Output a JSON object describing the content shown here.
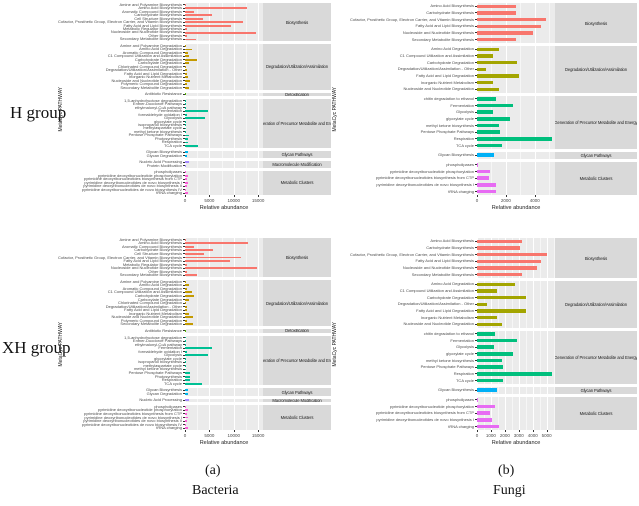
{
  "figure": {
    "row_groups": [
      {
        "label": "H group"
      },
      {
        "label": "XH group"
      }
    ],
    "captions": {
      "a_mark": "(a)",
      "a_label": "Bacteria",
      "b_mark": "(b)",
      "b_label": "Fungi"
    },
    "y_axis_title": "MetaCyc PATHWAY",
    "x_axis_title": "Relative abundance",
    "plot_bg": "#EBEBEB",
    "strip_bg": "#D9D9D9"
  },
  "chart_data": [
    {
      "id": "bacteria-h",
      "type": "bar",
      "row_group": "H group",
      "column": "Bacteria",
      "xlabel": "Relative abundance",
      "ylabel": "MetaCyc PATHWAY",
      "xlim": [
        0,
        16000
      ],
      "xticks": [
        0,
        5000,
        10000,
        15000
      ],
      "sections": [
        {
          "name": "Biosynthesis",
          "color": "#F8766D",
          "categories": [
            "Amine and Polyamine Biosynthesis",
            "Amino Acid Biosynthesis",
            "Aromatic Compound Biosynthesis",
            "Carbohydrate Biosynthesis",
            "Cell Structure Biosynthesis",
            "Cofactor, Prosthetic Group, Electron Carrier, and Vitamin Biosynthesis",
            "Fatty Acid and Lipid Biosynthesis",
            "Metabolic Regulator Biosynthesis",
            "Nucleoside and Nucleotide Biosynthesis",
            "Other Biosynthesis",
            "Secondary Metabolite Biosynthesis"
          ],
          "values": [
            300,
            12800,
            1800,
            5600,
            3600,
            11800,
            9400,
            400,
            14600,
            500,
            2300
          ]
        },
        {
          "name": "Degradation/Utilization/Assimilation",
          "color": "#C49A00",
          "categories": [
            "Amine and Polyamine Degradation",
            "Amino Acid Degradation",
            "Aromatic Compound Degradation",
            "C1 Compound Utilization and Assimilation",
            "Carbohydrate Degradation",
            "Carboxylate Degradation",
            "Chlorinated Compound Degradation",
            "Degradation/Utilization/Assimilation - Other",
            "Fatty Acid and Lipid Degradation",
            "Inorganic Nutrient Metabolism",
            "Nucleoside and Nucleotide Degradation",
            "Polymeric Compound Degradation",
            "Secondary Metabolite Degradation"
          ],
          "values": [
            100,
            1500,
            600,
            900,
            2400,
            800,
            100,
            350,
            450,
            700,
            1000,
            400,
            900
          ]
        },
        {
          "name": "Detoxification",
          "color": "#53B400",
          "categories": [
            "Antibiotic Resistance"
          ],
          "values": [
            150
          ]
        },
        {
          "name": "Generation of Precursor Metabolite and Energy",
          "color": "#00C094",
          "categories": [
            "1,5-anhydrofructose degradation",
            "Entner-Duodoroff Pathways",
            "ethylmalonyl-CoA pathway",
            "Fermentation",
            "formaldehyde oxidation I",
            "Glycolysis",
            "glyoxylate cycle",
            "isopropanol biosynthesis",
            "methylaspartate cycle",
            "methyl ketone biosynthesis",
            "Pentose Phosphate Pathways",
            "Photosynthesis",
            "Respiration",
            "TCA cycle"
          ],
          "values": [
            60,
            80,
            60,
            4800,
            350,
            4100,
            300,
            60,
            60,
            80,
            800,
            600,
            650,
            2600
          ]
        },
        {
          "name": "Glycan Pathways",
          "color": "#00B6EB",
          "categories": [
            "Glycan Biosynthesis",
            "Glycan Degradation"
          ],
          "values": [
            600,
            500
          ]
        },
        {
          "name": "Macromolecule Modification",
          "color": "#A58AFF",
          "categories": [
            "Nucleic Acid Processing",
            "Protein Modification"
          ],
          "values": [
            850,
            80
          ]
        },
        {
          "name": "Metabolic Clusters",
          "color": "#FB61D7",
          "categories": [
            "phospholipases",
            "pyrimidine deoxyribonucleotide phosphorylation",
            "pyrimidine deoxyribonucleotides biosynthesis from CTP",
            "pyrimidine deoxyribonucleotides de novo biosynthesis I",
            "pyrimidine deoxyribonucleotides de novo biosynthesis II",
            "pyrimidine deoxyribonucleotides de novo biosynthesis IV",
            "tRNA charging"
          ],
          "values": [
            60,
            650,
            450,
            650,
            350,
            150,
            600
          ]
        }
      ]
    },
    {
      "id": "fungi-h",
      "type": "bar",
      "row_group": "H group",
      "column": "Fungi",
      "xlabel": "Relative abundance",
      "ylabel": "MetaCyc PATHWAY",
      "xlim": [
        0,
        5400
      ],
      "xticks": [
        0,
        2000,
        4000
      ],
      "sections": [
        {
          "name": "Biosynthesis",
          "color": "#F8766D",
          "categories": [
            "Amino Acid Biosynthesis",
            "Carbohydrate Biosynthesis",
            "Cofactor, Prosthetic Group, Electron Carrier, and Vitamin Biosynthesis",
            "Fatty Acid and Lipid Biosynthesis",
            "Nucleoside and Nucleotide Biosynthesis",
            "Secondary Metabolite Biosynthesis"
          ],
          "values": [
            2700,
            2700,
            4800,
            4400,
            3900,
            2700
          ]
        },
        {
          "name": "Degradation/Utilization/Assimilation",
          "color": "#A3A500",
          "categories": [
            "Amino Acid Degradation",
            "C1 Compound Utilization and Assimilation",
            "Carbohydrate Degradation",
            "Degradation/Utilization/Assimilation - Other",
            "Fatty Acid and Lipid Degradation",
            "Inorganic Nutrient Metabolism",
            "Nucleoside and Nucleotide Degradation"
          ],
          "values": [
            1500,
            1100,
            2800,
            600,
            2900,
            1100,
            1500
          ]
        },
        {
          "name": "Generation of Precursor Metabolite and Energy",
          "color": "#00BF7D",
          "categories": [
            "chitin degradation to ethanol",
            "Fermentation",
            "Glycolysis",
            "glyoxylate cycle",
            "methyl ketone biosynthesis",
            "Pentose Phosphate Pathways",
            "Respiration",
            "TCA cycle"
          ],
          "values": [
            1300,
            2500,
            1100,
            2300,
            1500,
            1600,
            5200,
            1700
          ]
        },
        {
          "name": "Glycan Pathways",
          "color": "#00B0F6",
          "categories": [
            "Glycan Biosynthesis"
          ],
          "values": [
            1200
          ]
        },
        {
          "name": "Metabolic Clusters",
          "color": "#E76BF3",
          "categories": [
            "phospholipases",
            "pyrimidine deoxyribonucleotide phosphorylation",
            "pyrimidine deoxyribonucleotides biosynthesis from CTP",
            "pyrimidine deoxyribonucleotides de novo biosynthesis I",
            "tRNA charging"
          ],
          "values": [
            60,
            900,
            800,
            1300,
            1300
          ]
        }
      ]
    },
    {
      "id": "bacteria-xh",
      "type": "bar",
      "row_group": "XH group",
      "column": "Bacteria",
      "xlabel": "Relative abundance",
      "ylabel": "MetaCyc PATHWAY",
      "xlim": [
        0,
        16000
      ],
      "xticks": [
        0,
        5000,
        10000,
        15000
      ],
      "sections": [
        {
          "name": "Biosynthesis",
          "color": "#F8766D",
          "categories": [
            "Amine and Polyamine Biosynthesis",
            "Amino Acid Biosynthesis",
            "Aromatic Compound Biosynthesis",
            "Carbohydrate Biosynthesis",
            "Cell Structure Biosynthesis",
            "Cofactor, Prosthetic Group, Electron Carrier, and Vitamin Biosynthesis",
            "Fatty Acid and Lipid Biosynthesis",
            "Metabolic Regulator Biosynthesis",
            "Nucleoside and Nucleotide Biosynthesis",
            "Other Biosynthesis",
            "Secondary Metabolite Biosynthesis"
          ],
          "values": [
            300,
            13000,
            1900,
            5800,
            3900,
            11500,
            9300,
            400,
            14800,
            500,
            2500
          ]
        },
        {
          "name": "Degradation/Utilization/Assimilation",
          "color": "#C49A00",
          "categories": [
            "Amine and Polyamine Degradation",
            "Amino Acid Degradation",
            "Aromatic Compound Degradation",
            "C1 Compound Utilization and Assimilation",
            "Carbohydrate Degradation",
            "Carboxylate Degradation",
            "Chlorinated Compound Degradation",
            "Degradation/Utilization/Assimilation - Other",
            "Fatty Acid and Lipid Degradation",
            "Inorganic Nutrient Metabolism",
            "Nucleoside and Nucleotide Degradation",
            "Polymeric Compound Degradation",
            "Secondary Metabolite Degradation"
          ],
          "values": [
            100,
            800,
            500,
            1500,
            1900,
            900,
            100,
            350,
            450,
            800,
            1700,
            500,
            1600
          ]
        },
        {
          "name": "Detoxification",
          "color": "#53B400",
          "categories": [
            "Antibiotic Resistance"
          ],
          "values": [
            150
          ]
        },
        {
          "name": "Generation of Precursor Metabolite and Energy",
          "color": "#00C094",
          "categories": [
            "1,5-anhydrofructose degradation",
            "Entner-Duodoroff Pathways",
            "ethylmalonyl-CoA pathway",
            "Fermentation",
            "formaldehyde oxidation I",
            "Glycolysis",
            "glyoxylate cycle",
            "isopropanol biosynthesis",
            "methylaspartate cycle",
            "methyl ketone biosynthesis",
            "Pentose Phosphate Pathways",
            "Photosynthesis",
            "Respiration",
            "TCA cycle"
          ],
          "values": [
            60,
            80,
            60,
            5600,
            350,
            4700,
            300,
            60,
            60,
            80,
            1000,
            1000,
            950,
            3400
          ]
        },
        {
          "name": "Glycan Pathways",
          "color": "#00B6EB",
          "categories": [
            "Glycan Biosynthesis",
            "Glycan Degradation"
          ],
          "values": [
            700,
            550
          ]
        },
        {
          "name": "Macromolecule Modification",
          "color": "#A58AFF",
          "categories": [
            "Nucleic Acid Processing"
          ],
          "values": [
            900
          ]
        },
        {
          "name": "Metabolic Clusters",
          "color": "#FB61D7",
          "categories": [
            "phospholipases",
            "pyrimidine deoxyribonucleotide phosphorylation",
            "pyrimidine deoxyribonucleotides biosynthesis from CTP",
            "pyrimidine deoxyribonucleotides de novo biosynthesis I",
            "pyrimidine deoxyribonucleotides de novo biosynthesis II",
            "pyrimidine deoxyribonucleotides de novo biosynthesis IV",
            "tRNA charging"
          ],
          "values": [
            60,
            700,
            450,
            600,
            350,
            150,
            700
          ]
        }
      ]
    },
    {
      "id": "fungi-xh",
      "type": "bar",
      "row_group": "XH group",
      "column": "Fungi",
      "xlabel": "Relative abundance",
      "ylabel": "MetaCyc PATHWAY",
      "xlim": [
        0,
        5600
      ],
      "xticks": [
        0,
        1000,
        2000,
        3000,
        4000,
        5000
      ],
      "sections": [
        {
          "name": "Biosynthesis",
          "color": "#F8766D",
          "categories": [
            "Amino Acid Biosynthesis",
            "Carbohydrate Biosynthesis",
            "Cofactor, Prosthetic Group, Electron Carrier, and Vitamin Biosynthesis",
            "Fatty Acid and Lipid Biosynthesis",
            "Nucleoside and Nucleotide Biosynthesis",
            "Secondary Metabolite Biosynthesis"
          ],
          "values": [
            3200,
            3100,
            5000,
            4600,
            4300,
            3200
          ]
        },
        {
          "name": "Degradation/Utilization/Assimilation",
          "color": "#A3A500",
          "categories": [
            "Amino Acid Degradation",
            "C1 Compound Utilization and Assimilation",
            "Carbohydrate Degradation",
            "Degradation/Utilization/Assimilation - Other",
            "Fatty Acid and Lipid Degradation",
            "Inorganic Nutrient Metabolism",
            "Nucleoside and Nucleotide Degradation"
          ],
          "values": [
            2700,
            1400,
            3500,
            700,
            3500,
            1400,
            1800
          ]
        },
        {
          "name": "Generation of Precursor Metabolite and Energy",
          "color": "#00BF7D",
          "categories": [
            "chitin degradation to ethanol",
            "Fermentation",
            "Glycolysis",
            "glyoxylate cycle",
            "methyl ketone biosynthesis",
            "Pentose Phosphate Pathways",
            "Respiration",
            "TCA cycle"
          ],
          "values": [
            1300,
            2900,
            1200,
            2600,
            1800,
            1900,
            5400,
            1900
          ]
        },
        {
          "name": "Glycan Pathways",
          "color": "#00B0F6",
          "categories": [
            "Glycan Biosynthesis"
          ],
          "values": [
            1400
          ]
        },
        {
          "name": "Metabolic Clusters",
          "color": "#E76BF3",
          "categories": [
            "phospholipases",
            "pyrimidine deoxyribonucleotide phosphorylation",
            "pyrimidine deoxyribonucleotides biosynthesis from CTP",
            "pyrimidine deoxyribonucleotides de novo biosynthesis I",
            "tRNA charging"
          ],
          "values": [
            80,
            1300,
            900,
            1100,
            1600
          ]
        }
      ]
    }
  ]
}
